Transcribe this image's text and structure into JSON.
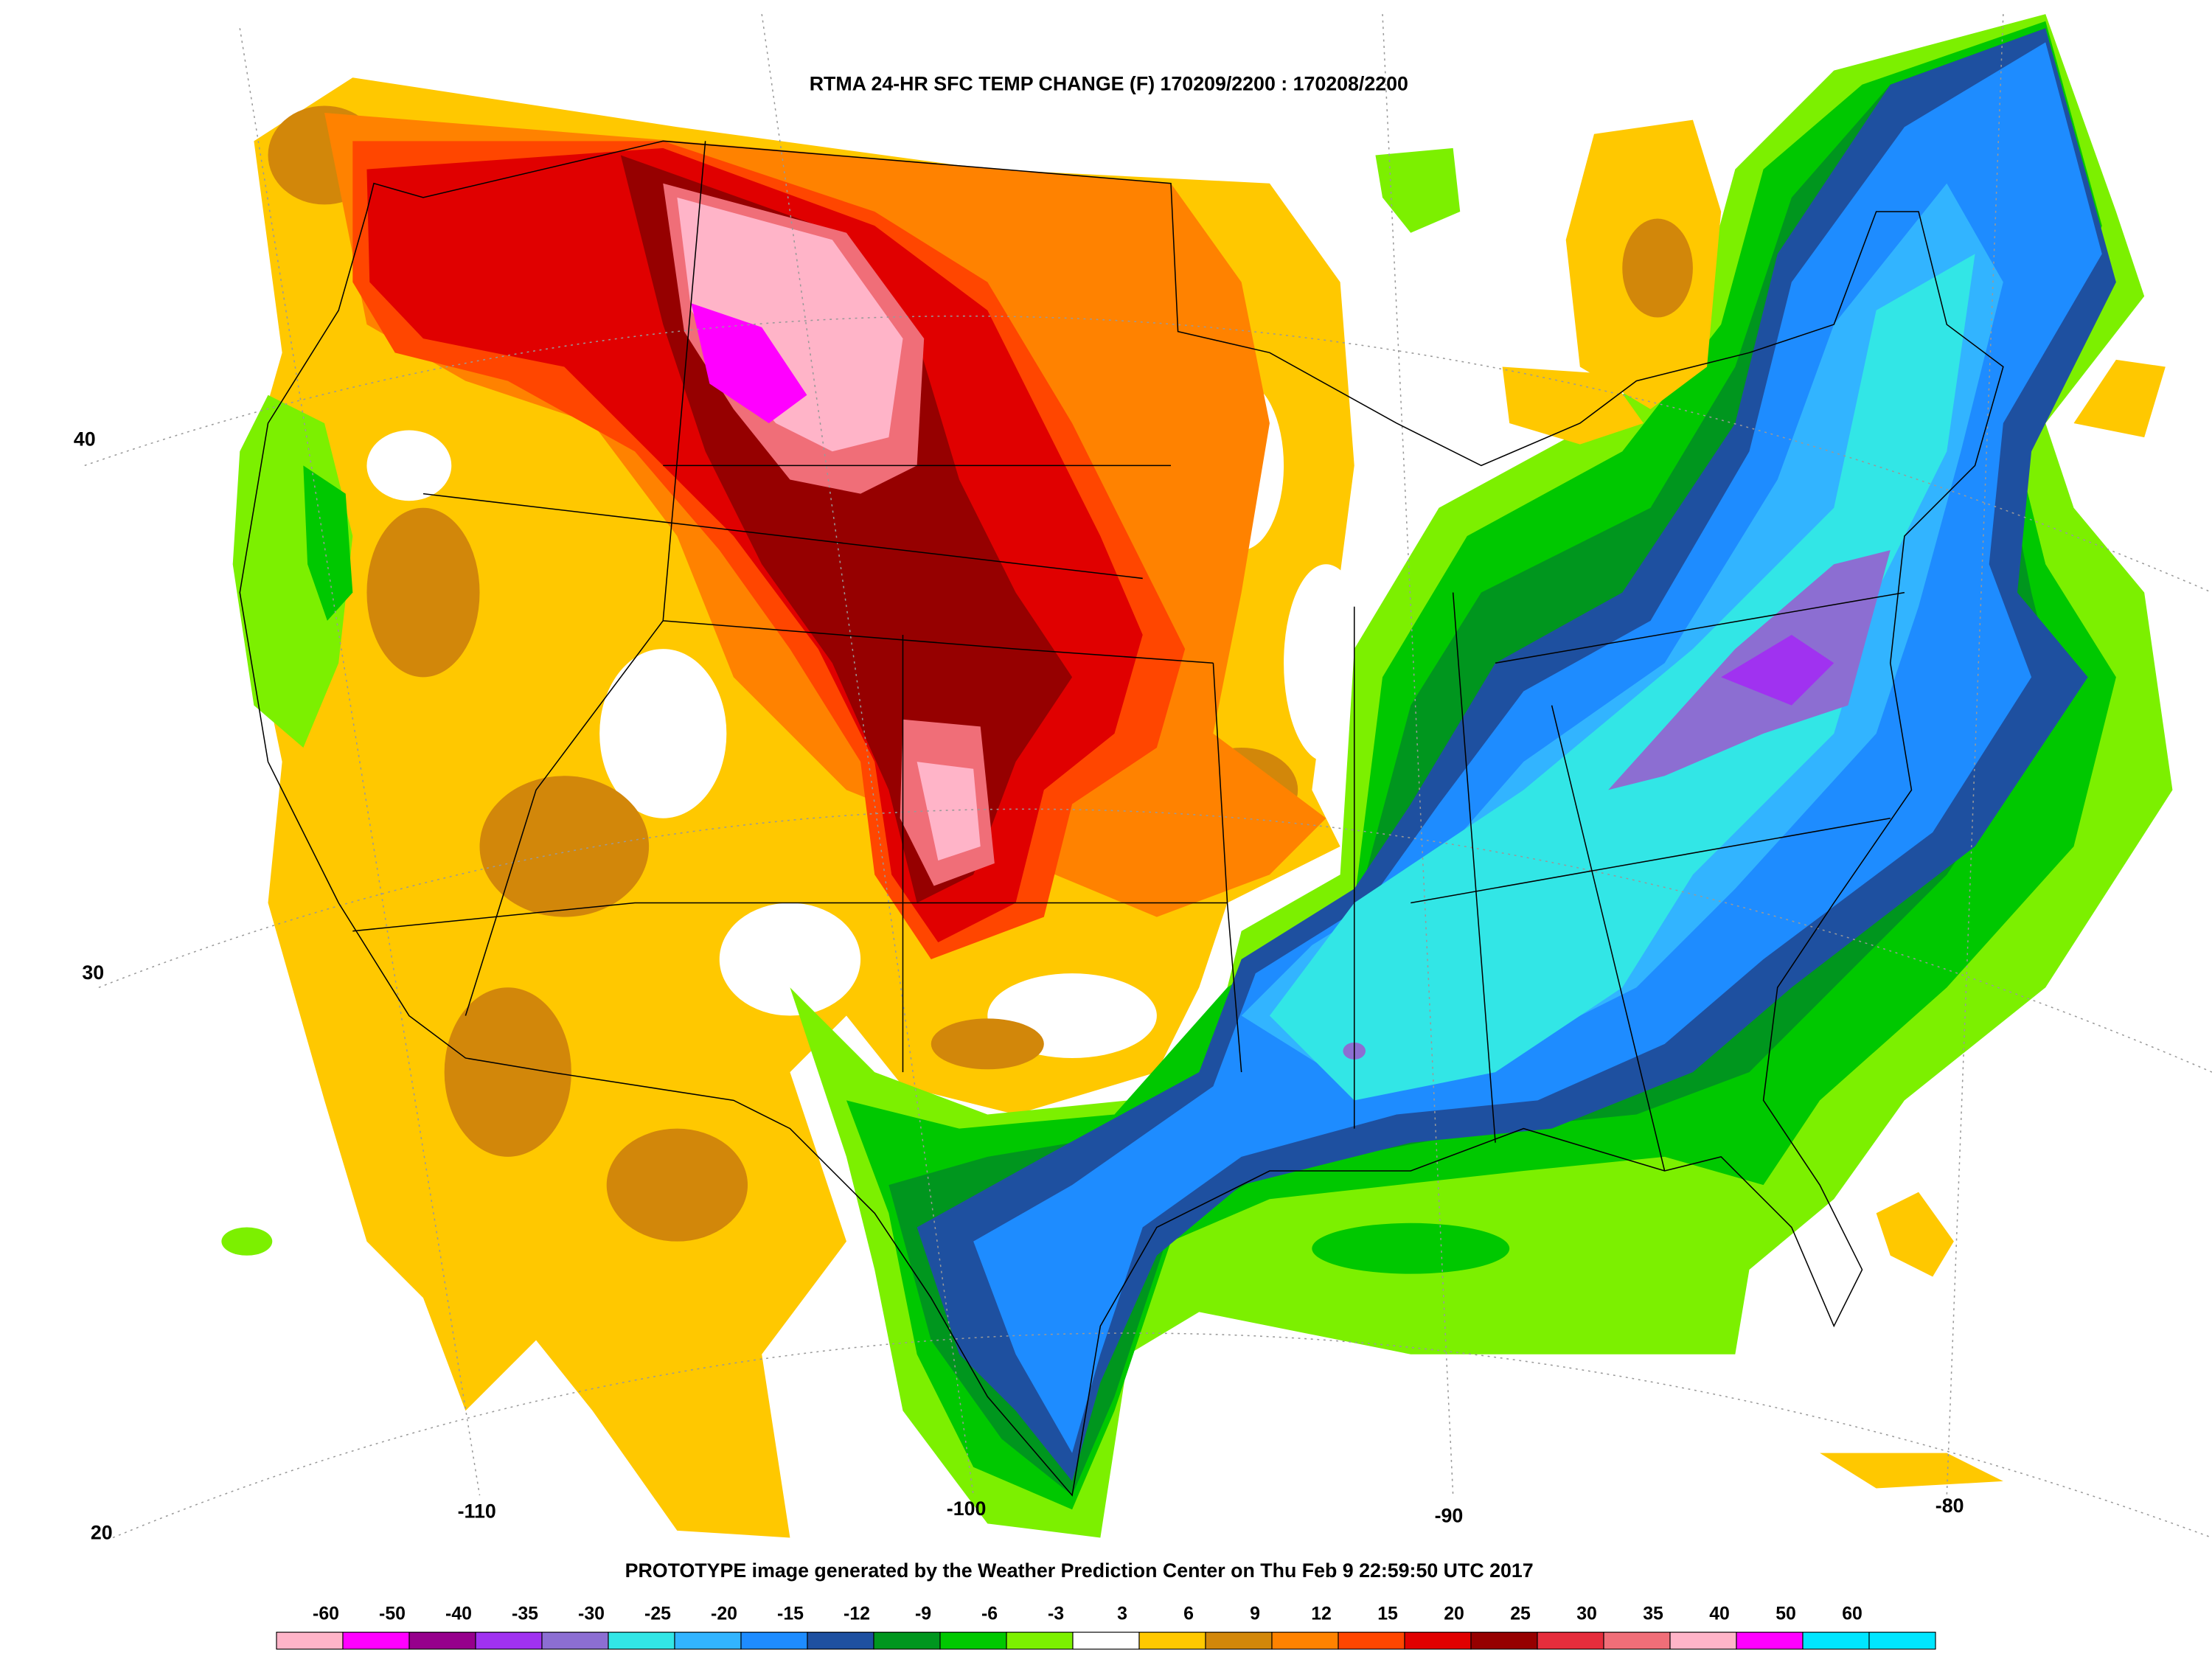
{
  "map": {
    "title": "RTMA 24-HR SFC TEMP CHANGE (F) 170209/2200 : 170208/2200",
    "footer": "PROTOTYPE image generated by the Weather Prediction Center on Thu Feb 9 22:59:50 UTC 2017",
    "lat_labels": [
      "40",
      "30",
      "20"
    ],
    "lon_labels": [
      "-110",
      "-100",
      "-90",
      "-80"
    ],
    "legend": {
      "labels": [
        "-60",
        "-50",
        "-40",
        "-35",
        "-30",
        "-25",
        "-20",
        "-15",
        "-12",
        "-9",
        "-6",
        "-3",
        "3",
        "6",
        "9",
        "12",
        "15",
        "20",
        "25",
        "30",
        "35",
        "40",
        "50",
        "60"
      ],
      "colors": [
        "#ffb4c8",
        "#ff00ff",
        "#96008c",
        "#a032f0",
        "#8c6ed2",
        "#32e6e6",
        "#32b4ff",
        "#1e8cff",
        "#1e50a0",
        "#00961e",
        "#00c800",
        "#7cf000",
        "#ffffff",
        "#ffc800",
        "#d2870a",
        "#ff8200",
        "#ff4600",
        "#e00000",
        "#960000",
        "#e62d3c",
        "#f06e78",
        "#ffb4c8",
        "#ff00ff",
        "#00e6ff"
      ]
    }
  }
}
